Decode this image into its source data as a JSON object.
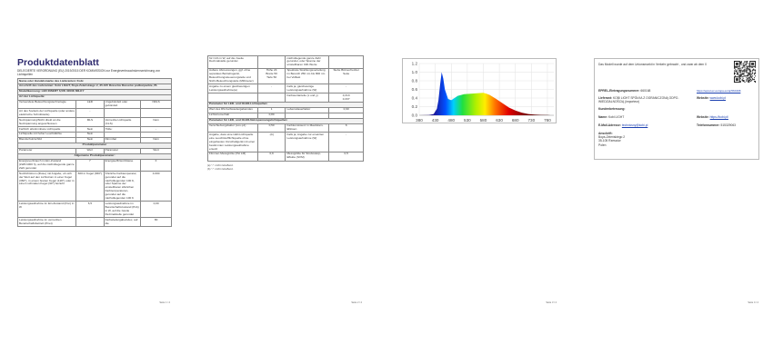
{
  "page1": {
    "title": "Produktdatenblatt",
    "regulation": "DELEGIERTE VERORDNUNG (EU) 2019/2015 DER KOMMISSION zur Energieverbrauchskennzeichnung von Lichtquellen",
    "footer": "Seite 1 / 4",
    "rows": [
      [
        {
          "t": "Name oder Handelsmarke des Lieferanten: Kobi",
          "span": 4,
          "cls": "sec"
        }
      ],
      [
        {
          "t": "Anschrift des Lieferanten: Kobi LIGHT, Boya-Żeleńskiego 2, 35-105 Rzeszów Rzeszów podkarpackie, PL",
          "span": 4,
          "cls": "sec"
        }
      ],
      [
        {
          "t": "Modellkennung: LED INSERT 6,5W 4000K MILKY",
          "span": 4,
          "cls": "sec"
        }
      ],
      [
        {
          "t": "Art der Lichtquelle:",
          "span": 4,
          "cls": "sec"
        }
      ],
      [
        "Verwendete Beleuchtungstechnologie",
        "LED",
        "Ungebündelt oder gebündelt",
        "NDLS"
      ],
      [
        "Art des Sockels der Lichtquelle (oder andere elektrische Schnittstelle)",
        "-",
        "",
        ""
      ],
      [
        "Netzspannung/Nicht direkt an die Netzspannung angeschlossen",
        "MLS",
        "Vernetzte Lichtquelle (CLS)",
        "Nein"
      ],
      [
        "Farblich abstimmbare Lichtquelle",
        "Nein",
        "Hülle:",
        "-"
      ],
      [
        "Lichtquelle mit hoher Leuchtdichte",
        "Nein",
        "",
        ""
      ],
      [
        "Blendschutzschild",
        "Nein",
        "Dimmbar",
        "Nein"
      ],
      [
        {
          "t": "Produktparameter",
          "span": 4,
          "cls": "mid"
        }
      ],
      [
        "Parameter",
        "Wert",
        "Parameter",
        "Wert"
      ],
      [
        {
          "t": "Allgemeine Produktparameter:",
          "span": 4,
          "cls": "mid"
        }
      ],
      [
        "Energieverbrauch im Ein-Zustand (kWh/1000 h), auf die nächstliegende ganze Zahl gerundet",
        "7",
        "Energieeffizienzklasse",
        "F"
      ],
      [
        "Nutzlichtstrom (Φuse) mit Angabe, ob sich der Wert auf den Lichtstrom in einer Kugel (360°), in einem breiten Kegel (120°) oder in einem schmalen Kegel (90°) bezieht",
        "600 in Kugel (360°)",
        "Ähnliche Farbtemperatur, gerundet auf die nächstliegenden 100 K, oder Spanne der einstellbaren ähnlichen Farbtemperaturen, gerundet auf die nächstliegenden 100 K",
        "4.000"
      ],
      [
        "Leistungsaufnahme im Ein-Zustand (Pon) in W",
        "6,5",
        "Leistungsaufnahme im Bereitschaftszustand (Psb) in W, auf die zweite Dezimalstelle gerundet",
        "0,00"
      ],
      [
        "Leistungsaufnahme im vernetzten Bereitschaftsbetrieb (Pnet)",
        "-",
        "Farbwiedergabeindex, auf die",
        "80"
      ]
    ]
  },
  "page2": {
    "footer": "Seite 2 / 4",
    "rows": [
      [
        "für CLS in W, auf die zweite Dezimalstelle gerundet",
        "",
        "nächstliegende ganze Zahl gerundet, oder Spanne der einstellbaren CRI-Werte",
        ""
      ],
      [
        "Äußere Abmessungen, ggf. ohne separates Betriebsgerät, Beleuchtungssteuerungsteile und Nicht-Beleuchtungsteile (Millimeter)",
        "Höhe 24\nBreite 50\nTiefe 50",
        "Spektrale Strahlungsverteilung im Bereich 250 nm bis 800 nm bei Volllast",
        "Siehe Bild auf letzter Seite"
      ],
      [
        "Angabe zu einem gleichwertigen Leistungsaufnahme(a)",
        "-",
        "Falls ja, gleichwertige Leistungsaufnahme (W)",
        "-"
      ],
      [
        "",
        "",
        "Farbwertanteile (x und y)",
        "0,313\n0,337"
      ],
      [
        {
          "t": "Parameter für LED- und OLED-Lichtquellen:",
          "span": 4,
          "cls": "sec"
        }
      ],
      [
        "Wert des R9-Farbwiedergabeindex",
        "1",
        "Lebensdauerfaktor",
        "0,90"
      ],
      [
        "Lichtstromerhalt",
        "0,80",
        "",
        ""
      ],
      [
        {
          "t": "Parameter für LED- und OLED-Netzspannungslichtquellen:",
          "span": 4,
          "cls": "sec"
        }
      ],
      [
        "Verschiebungsfaktor (cos φ1)",
        "0,50",
        "Farbkonsistenz in MacAdam-Ellipsen",
        "6"
      ],
      [
        "Angabe, dass eine LED-Lichtquelle eine Leuchtstofflichtquelle ohne eingebautes Vorschaltgerät mit einer bestimmten Leistungsaufnahme ersetzt",
        "-(b)",
        "Falls ja, Angabe zur ersetzten Leistungsaufnahme (W)",
        "-"
      ],
      [
        "Flimmer-Messgröße (Pst LM)",
        "0,9",
        "Messgröße für Stroboskop-Effekte (SVM)",
        "0,5"
      ]
    ],
    "footnotes": [
      "(a) \"-\": nicht zutreffend.",
      "(b) \"-\": nicht zutreffend."
    ]
  },
  "page3": {
    "footer": "Seite 3 / 4"
  },
  "chart_data": {
    "type": "area",
    "xlim": [
      380,
      800
    ],
    "ylim": [
      0,
      1.2
    ],
    "xticks": [
      380,
      430,
      480,
      530,
      580,
      630,
      680,
      730,
      780
    ],
    "yticks": [
      "0.0",
      "0.2",
      "0.4",
      "0.6",
      "0.8",
      "1.0",
      "1.2"
    ],
    "grid": true,
    "x": [
      380,
      410,
      425,
      435,
      440,
      445,
      450,
      455,
      460,
      470,
      480,
      490,
      500,
      520,
      540,
      560,
      580,
      590,
      600,
      620,
      640,
      660,
      680,
      700,
      720,
      740,
      760,
      780,
      790
    ],
    "y": [
      0,
      0.005,
      0.03,
      0.15,
      0.35,
      0.7,
      1.0,
      0.85,
      0.6,
      0.38,
      0.35,
      0.4,
      0.45,
      0.49,
      0.5,
      0.51,
      0.52,
      0.5,
      0.47,
      0.38,
      0.28,
      0.18,
      0.11,
      0.06,
      0.03,
      0.015,
      0.008,
      0.004,
      0
    ]
  },
  "page4": {
    "footer": "Seite 4 / 4",
    "intro": "Das Modell wurde auf dem Unionsmarkt in Verkehr gebracht , und zwar ab dem 0",
    "eprel_label": "EPREL-Eintragungsnummer:",
    "eprel": "660168",
    "eprel_url": "https://eprel.ec.europa.eu/qr/660168",
    "supplier_label": "Lieferant:",
    "supplier": "KOBI LIGHT SPÓŁKA Z OGRANICZONĄ ODPO-WIEDZIALNOŚCIĄ (importeur)",
    "website_label": "Website:",
    "website": "www.kobi.pl",
    "support_label": "Kundenbetreuung:",
    "name_label": "Name:",
    "name": "Kobi LIGHT",
    "website2_label": "Website:",
    "website2": "https://kobi.pl/",
    "email_label": "E-Mail-Adresse:",
    "email": "technicsny@kobi.pl",
    "phone_label": "Telefonnummer:",
    "phone": "515329063",
    "address_label": "Anschrift:",
    "address": [
      "Boya-Żeleńskiego 2",
      "35-105 Rzeszów",
      "Polen"
    ]
  }
}
